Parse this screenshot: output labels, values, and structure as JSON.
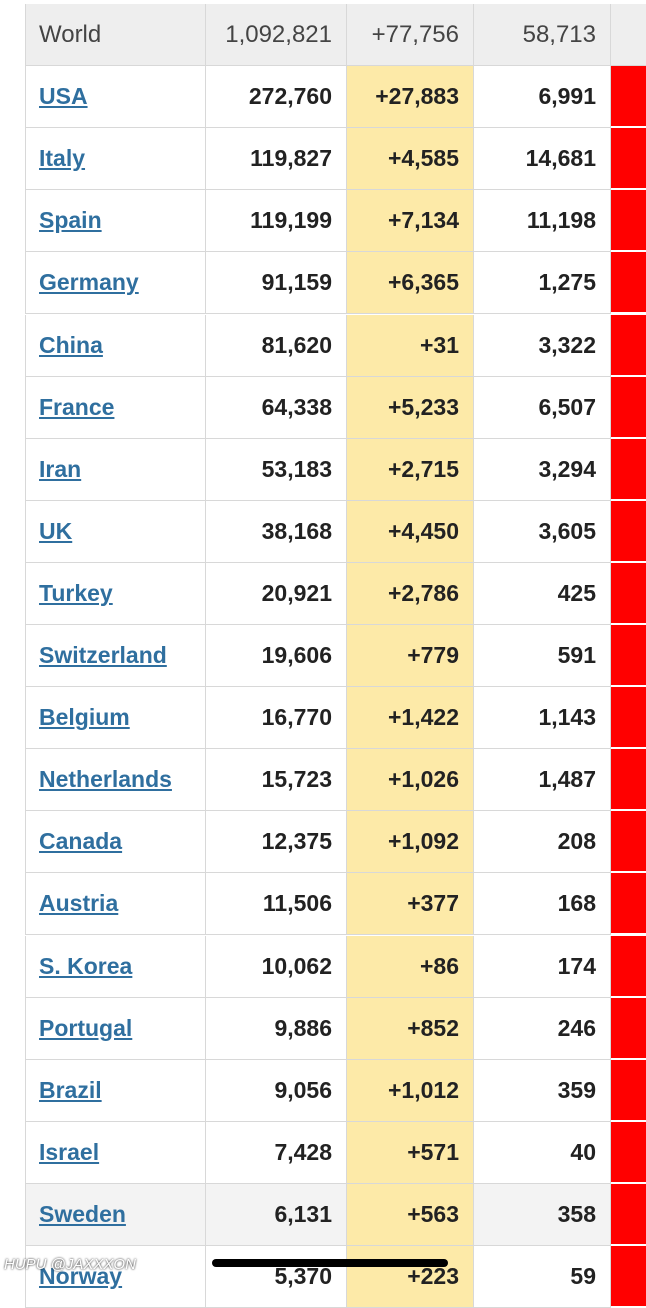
{
  "table": {
    "header": [
      "World",
      "1,092,821",
      "+77,756",
      "58,713"
    ],
    "rows": [
      [
        "USA",
        "272,760",
        "+27,883",
        "6,991"
      ],
      [
        "Italy",
        "119,827",
        "+4,585",
        "14,681"
      ],
      [
        "Spain",
        "119,199",
        "+7,134",
        "11,198"
      ],
      [
        "Germany",
        "91,159",
        "+6,365",
        "1,275"
      ],
      [
        "China",
        "81,620",
        "+31",
        "3,322"
      ],
      [
        "France",
        "64,338",
        "+5,233",
        "6,507"
      ],
      [
        "Iran",
        "53,183",
        "+2,715",
        "3,294"
      ],
      [
        "UK",
        "38,168",
        "+4,450",
        "3,605"
      ],
      [
        "Turkey",
        "20,921",
        "+2,786",
        "425"
      ],
      [
        "Switzerland",
        "19,606",
        "+779",
        "591"
      ],
      [
        "Belgium",
        "16,770",
        "+1,422",
        "1,143"
      ],
      [
        "Netherlands",
        "15,723",
        "+1,026",
        "1,487"
      ],
      [
        "Canada",
        "12,375",
        "+1,092",
        "208"
      ],
      [
        "Austria",
        "11,506",
        "+377",
        "168"
      ],
      [
        "S. Korea",
        "10,062",
        "+86",
        "174"
      ],
      [
        "Portugal",
        "9,886",
        "+852",
        "246"
      ],
      [
        "Brazil",
        "9,056",
        "+1,012",
        "359"
      ],
      [
        "Israel",
        "7,428",
        "+571",
        "40"
      ],
      [
        "Sweden",
        "6,131",
        "+563",
        "358"
      ],
      [
        "Norway",
        "5,370",
        "+223",
        "59"
      ]
    ]
  },
  "watermark": "HUPU @JAXXXON"
}
